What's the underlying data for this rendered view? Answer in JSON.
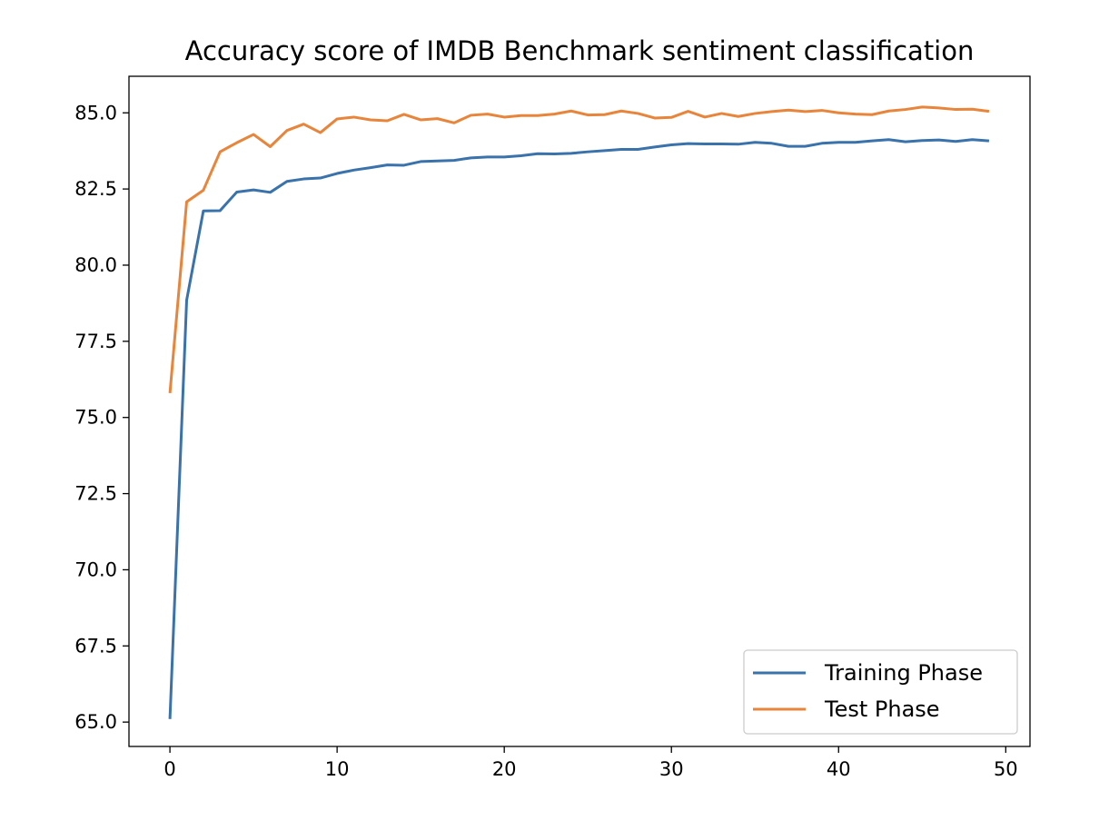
{
  "chart_data": {
    "type": "line",
    "title": "Accuracy score of IMDB Benchmark sentiment classification",
    "xlabel": "",
    "ylabel": "",
    "xlim": [
      -2.45,
      51.45
    ],
    "ylim": [
      64.2,
      86.2
    ],
    "xticks": [
      0,
      10,
      20,
      30,
      40,
      50
    ],
    "xtick_labels": [
      "0",
      "10",
      "20",
      "30",
      "40",
      "50"
    ],
    "yticks": [
      65.0,
      67.5,
      70.0,
      72.5,
      75.0,
      77.5,
      80.0,
      82.5,
      85.0
    ],
    "ytick_labels": [
      "65.0",
      "67.5",
      "70.0",
      "72.5",
      "75.0",
      "77.5",
      "80.0",
      "82.5",
      "85.0"
    ],
    "grid": false,
    "legend_position": "lower-right",
    "x": [
      0,
      1,
      2,
      3,
      4,
      5,
      6,
      7,
      8,
      9,
      10,
      11,
      12,
      13,
      14,
      15,
      16,
      17,
      18,
      19,
      20,
      21,
      22,
      23,
      24,
      25,
      26,
      27,
      28,
      29,
      30,
      31,
      32,
      33,
      34,
      35,
      36,
      37,
      38,
      39,
      40,
      41,
      42,
      43,
      44,
      45,
      46,
      47,
      48,
      49
    ],
    "series": [
      {
        "name": "Training Phase",
        "color": "#3a72ab",
        "values": [
          65.1,
          78.85,
          81.78,
          81.79,
          82.4,
          82.47,
          82.39,
          82.75,
          82.83,
          82.86,
          83.01,
          83.12,
          83.2,
          83.29,
          83.28,
          83.4,
          83.42,
          83.44,
          83.52,
          83.55,
          83.55,
          83.59,
          83.66,
          83.65,
          83.67,
          83.72,
          83.76,
          83.8,
          83.8,
          83.88,
          83.95,
          83.99,
          83.98,
          83.98,
          83.97,
          84.03,
          84.0,
          83.9,
          83.9,
          84.0,
          84.03,
          84.03,
          84.08,
          84.12,
          84.05,
          84.09,
          84.11,
          84.06,
          84.12,
          84.08
        ]
      },
      {
        "name": "Test Phase",
        "color": "#e8853a",
        "values": [
          75.8,
          82.08,
          82.46,
          83.72,
          84.02,
          84.29,
          83.89,
          84.42,
          84.63,
          84.35,
          84.8,
          84.86,
          84.77,
          84.74,
          84.95,
          84.77,
          84.81,
          84.67,
          84.92,
          84.96,
          84.86,
          84.91,
          84.91,
          84.96,
          85.06,
          84.93,
          84.94,
          85.06,
          84.98,
          84.83,
          84.85,
          85.05,
          84.86,
          84.98,
          84.88,
          84.98,
          85.04,
          85.09,
          85.04,
          85.08,
          85.0,
          84.96,
          84.94,
          85.06,
          85.11,
          85.19,
          85.16,
          85.11,
          85.12,
          85.05
        ]
      }
    ]
  }
}
